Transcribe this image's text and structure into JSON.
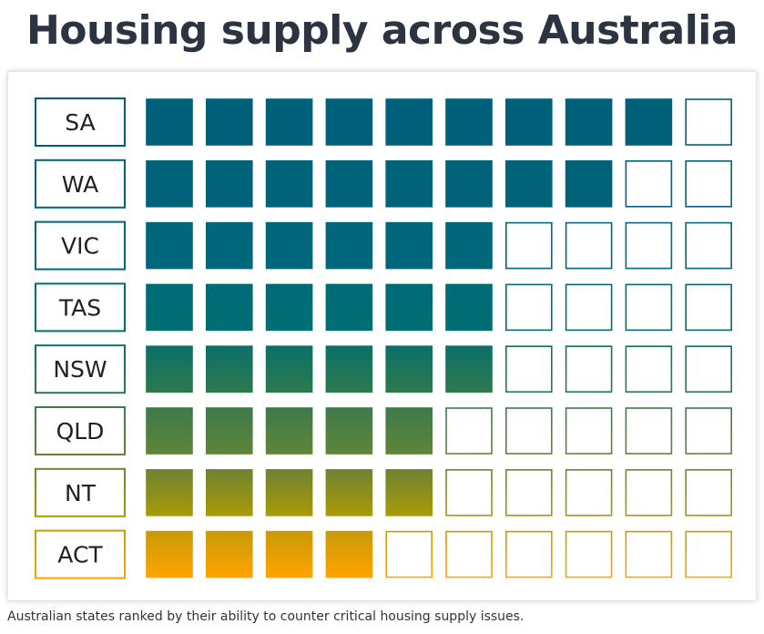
{
  "title": "Housing supply across Australia",
  "caption": "Australian states ranked by their ability to counter critical housing supply issues.",
  "chart_data": {
    "type": "waffle",
    "title": "Housing supply across Australia",
    "max_units": 10,
    "categories": [
      "SA",
      "WA",
      "VIC",
      "TAS",
      "NSW",
      "QLD",
      "NT",
      "ACT"
    ],
    "values": [
      9,
      8,
      6,
      6,
      6,
      5,
      5,
      4
    ],
    "row_colors": [
      [
        "#00607a",
        "#00607a"
      ],
      [
        "#00637a",
        "#00637a"
      ],
      [
        "#00677a",
        "#00677a"
      ],
      [
        "#006b76",
        "#006e72"
      ],
      [
        "#0c6f6a",
        "#2c7a4c"
      ],
      [
        "#3d7a4a",
        "#5f853a"
      ],
      [
        "#6f8330",
        "#a89a08"
      ],
      [
        "#c99a08",
        "#ffa400"
      ]
    ],
    "empty_fill": "#ffffff"
  }
}
